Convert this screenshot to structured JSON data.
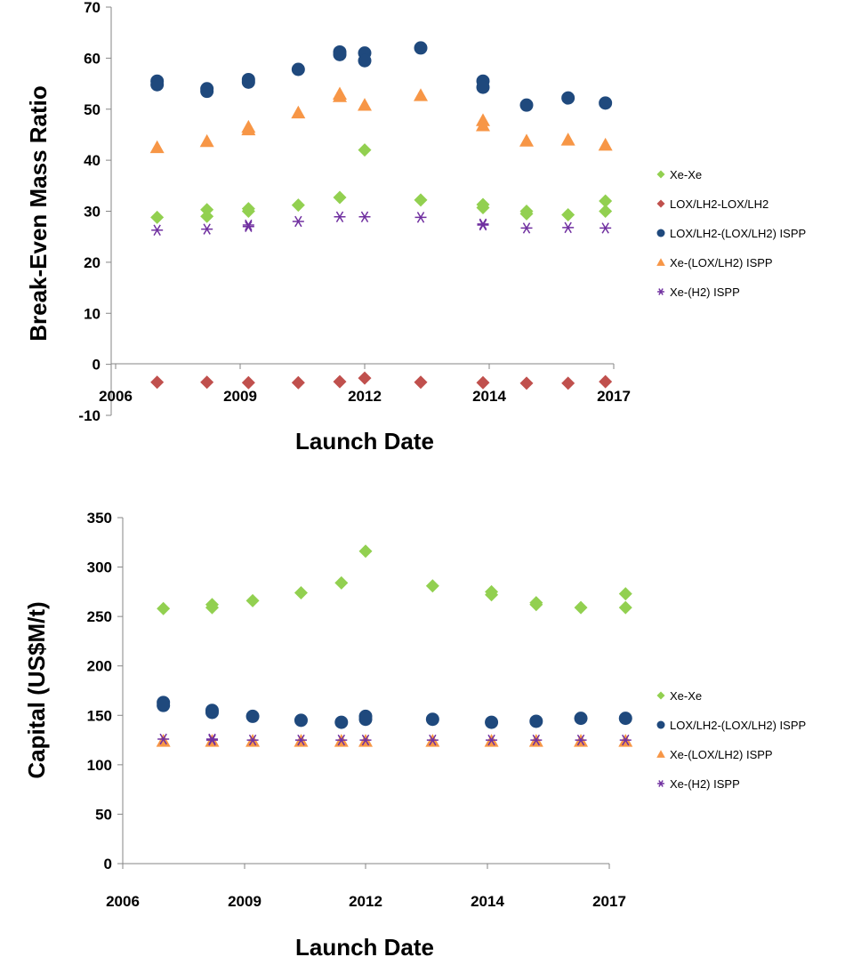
{
  "colors": {
    "xe_xe": "#92d050",
    "lox_lox": "#c0504d",
    "lox_ispp": "#1f497d",
    "xe_lox_ispp": "#f79646",
    "xe_h2_ispp": "#7030a0"
  },
  "chart_data": [
    {
      "type": "scatter",
      "xlabel": "Launch Date",
      "ylabel": "Break-Even Mass Ratio",
      "xlim": [
        2006,
        2017
      ],
      "ylim": [
        -10,
        70
      ],
      "xticks": [
        "2006",
        "2009",
        "2012",
        "2014",
        "2017"
      ],
      "yticks": [
        "70",
        "60",
        "50",
        "40",
        "30",
        "20",
        "10",
        "0",
        "-10"
      ],
      "legend_position": "right",
      "series": [
        {
          "name": "Xe-Xe",
          "marker": "diamond",
          "color": "#92d050",
          "points": [
            [
              2007.0,
              28.8
            ],
            [
              2008.2,
              30.3
            ],
            [
              2008.2,
              29.0
            ],
            [
              2009.2,
              30.5
            ],
            [
              2009.2,
              30.0
            ],
            [
              2010.4,
              31.2
            ],
            [
              2011.4,
              32.7
            ],
            [
              2012.0,
              42.0
            ],
            [
              2012.9,
              32.2
            ],
            [
              2013.9,
              31.3
            ],
            [
              2013.9,
              30.7
            ],
            [
              2014.9,
              30.0
            ],
            [
              2014.9,
              29.5
            ],
            [
              2015.9,
              29.3
            ],
            [
              2016.8,
              32.0
            ],
            [
              2016.8,
              30.0
            ]
          ]
        },
        {
          "name": "LOX/LH2-LOX/LH2",
          "marker": "diamond",
          "color": "#c0504d",
          "points": [
            [
              2007.0,
              -3.5
            ],
            [
              2008.2,
              -3.5
            ],
            [
              2009.2,
              -3.6
            ],
            [
              2010.4,
              -3.6
            ],
            [
              2011.4,
              -3.4
            ],
            [
              2012.0,
              -2.7
            ],
            [
              2012.9,
              -3.5
            ],
            [
              2013.9,
              -3.6
            ],
            [
              2014.9,
              -3.7
            ],
            [
              2015.9,
              -3.7
            ],
            [
              2016.8,
              -3.4
            ]
          ]
        },
        {
          "name": "LOX/LH2-(LOX/LH2) ISPP",
          "marker": "circle",
          "color": "#1f497d",
          "points": [
            [
              2007.0,
              55.5
            ],
            [
              2007.0,
              54.8
            ],
            [
              2008.2,
              54.0
            ],
            [
              2008.2,
              53.5
            ],
            [
              2009.2,
              55.8
            ],
            [
              2009.2,
              55.3
            ],
            [
              2010.4,
              57.8
            ],
            [
              2011.4,
              61.2
            ],
            [
              2011.4,
              60.7
            ],
            [
              2012.0,
              61.0
            ],
            [
              2012.0,
              59.5
            ],
            [
              2012.9,
              62.0
            ],
            [
              2013.9,
              55.5
            ],
            [
              2013.9,
              54.3
            ],
            [
              2014.9,
              50.8
            ],
            [
              2015.9,
              52.2
            ],
            [
              2016.8,
              51.2
            ]
          ]
        },
        {
          "name": "Xe-(LOX/LH2) ISPP",
          "marker": "triangle",
          "color": "#f79646",
          "points": [
            [
              2007.0,
              42.5
            ],
            [
              2008.2,
              43.7
            ],
            [
              2009.2,
              46.5
            ],
            [
              2009.2,
              46.0
            ],
            [
              2010.4,
              49.3
            ],
            [
              2011.4,
              53.0
            ],
            [
              2011.4,
              52.5
            ],
            [
              2012.0,
              50.8
            ],
            [
              2012.9,
              52.7
            ],
            [
              2013.9,
              47.8
            ],
            [
              2013.9,
              46.8
            ],
            [
              2014.9,
              43.8
            ],
            [
              2015.9,
              44.0
            ],
            [
              2016.8,
              43.0
            ]
          ]
        },
        {
          "name": "Xe-(H2) ISPP",
          "marker": "star",
          "color": "#7030a0",
          "points": [
            [
              2007.0,
              26.3
            ],
            [
              2008.2,
              26.5
            ],
            [
              2009.2,
              27.3
            ],
            [
              2009.2,
              27.0
            ],
            [
              2010.4,
              28.0
            ],
            [
              2011.4,
              28.9
            ],
            [
              2012.0,
              28.9
            ],
            [
              2012.9,
              28.8
            ],
            [
              2013.9,
              27.5
            ],
            [
              2013.9,
              27.3
            ],
            [
              2014.9,
              26.7
            ],
            [
              2015.9,
              26.8
            ],
            [
              2016.8,
              26.7
            ]
          ]
        }
      ]
    },
    {
      "type": "scatter",
      "xlabel": "Launch Date",
      "ylabel": "Capital (US$M/t)",
      "xlim": [
        2006,
        2017
      ],
      "ylim": [
        0,
        350
      ],
      "xticks": [
        "2006",
        "2009",
        "2012",
        "2014",
        "2017"
      ],
      "yticks": [
        "350",
        "300",
        "250",
        "200",
        "150",
        "100",
        "50",
        "0"
      ],
      "legend_position": "right",
      "series": [
        {
          "name": "Xe-Xe",
          "marker": "diamond",
          "color": "#92d050",
          "points": [
            [
              2007.0,
              258
            ],
            [
              2008.2,
              262
            ],
            [
              2008.2,
              259
            ],
            [
              2009.2,
              266
            ],
            [
              2010.4,
              274
            ],
            [
              2011.4,
              284
            ],
            [
              2012.0,
              316
            ],
            [
              2013.1,
              281
            ],
            [
              2014.1,
              275
            ],
            [
              2014.1,
              272
            ],
            [
              2015.2,
              264
            ],
            [
              2015.2,
              262
            ],
            [
              2016.3,
              259
            ],
            [
              2017.4,
              273
            ],
            [
              2017.4,
              259
            ]
          ]
        },
        {
          "name": "LOX/LH2-(LOX/LH2) ISPP",
          "marker": "circle",
          "color": "#1f497d",
          "points": [
            [
              2007.0,
              163
            ],
            [
              2007.0,
              160
            ],
            [
              2008.2,
              155
            ],
            [
              2008.2,
              153
            ],
            [
              2009.2,
              149
            ],
            [
              2010.4,
              145
            ],
            [
              2011.4,
              143
            ],
            [
              2012.0,
              149
            ],
            [
              2012.0,
              146
            ],
            [
              2013.1,
              146
            ],
            [
              2014.1,
              143
            ],
            [
              2015.2,
              144
            ],
            [
              2016.3,
              147
            ],
            [
              2017.4,
              147
            ]
          ]
        },
        {
          "name": "Xe-(LOX/LH2) ISPP",
          "marker": "triangle",
          "color": "#f79646",
          "points": [
            [
              2007.0,
              124
            ],
            [
              2008.2,
              124
            ],
            [
              2009.2,
              124
            ],
            [
              2010.4,
              124
            ],
            [
              2011.4,
              124
            ],
            [
              2012.0,
              124
            ],
            [
              2013.1,
              124
            ],
            [
              2014.1,
              124
            ],
            [
              2015.2,
              124
            ],
            [
              2016.3,
              124
            ],
            [
              2017.4,
              124
            ]
          ]
        },
        {
          "name": "Xe-(H2) ISPP",
          "marker": "star",
          "color": "#7030a0",
          "points": [
            [
              2007.0,
              126
            ],
            [
              2008.2,
              126
            ],
            [
              2008.2,
              125
            ],
            [
              2009.2,
              125
            ],
            [
              2010.4,
              125
            ],
            [
              2011.4,
              125
            ],
            [
              2012.0,
              125
            ],
            [
              2013.1,
              125
            ],
            [
              2014.1,
              125
            ],
            [
              2015.2,
              125
            ],
            [
              2016.3,
              125
            ],
            [
              2017.4,
              125
            ]
          ]
        }
      ]
    }
  ]
}
